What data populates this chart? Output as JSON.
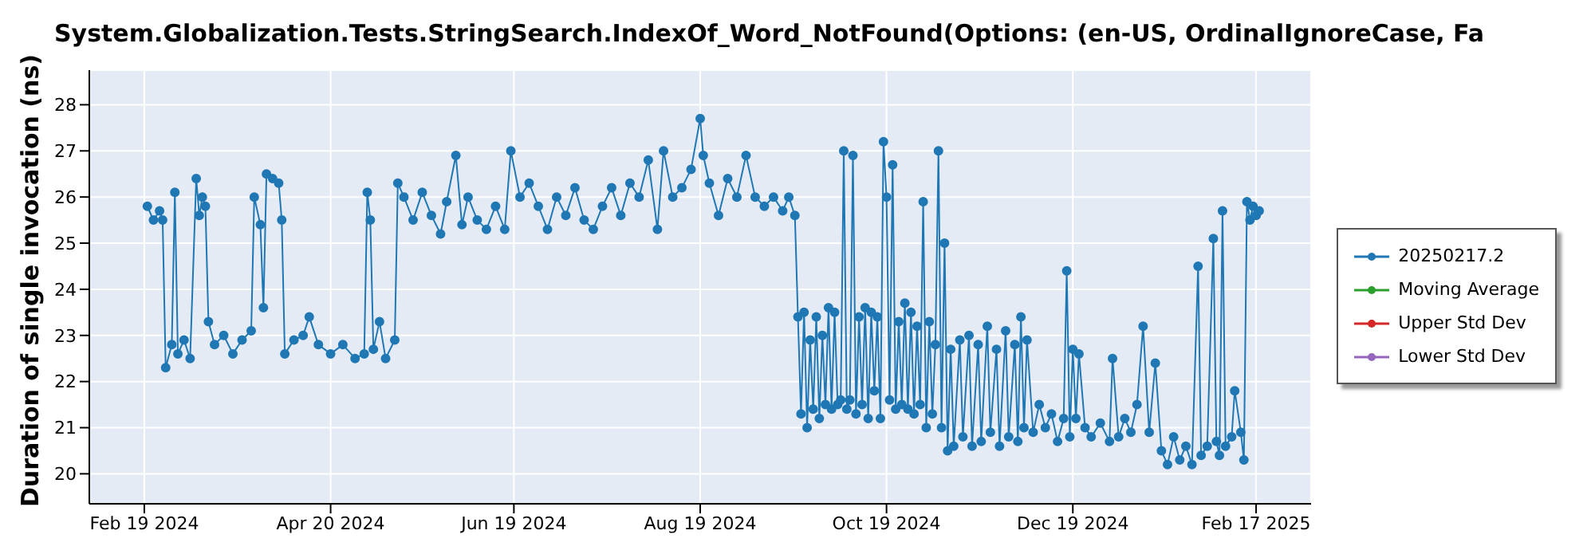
{
  "chart_data": {
    "type": "line",
    "title": "System.Globalization.Tests.StringSearch.IndexOf_Word_NotFound(Options: (en-US, OrdinalIgnoreCase, Fa",
    "ylabel": "Duration of single invocation (ns)",
    "x": [
      "2024-02-20",
      "2024-02-22",
      "2024-02-24",
      "2024-02-25",
      "2024-02-26",
      "2024-02-28",
      "2024-02-29",
      "2024-03-01",
      "2024-03-03",
      "2024-03-05",
      "2024-03-07",
      "2024-03-08",
      "2024-03-09",
      "2024-03-10",
      "2024-03-11",
      "2024-03-13",
      "2024-03-16",
      "2024-03-19",
      "2024-03-22",
      "2024-03-25",
      "2024-03-26",
      "2024-03-28",
      "2024-03-29",
      "2024-03-30",
      "2024-04-01",
      "2024-04-03",
      "2024-04-04",
      "2024-04-05",
      "2024-04-08",
      "2024-04-11",
      "2024-04-13",
      "2024-04-16",
      "2024-04-20",
      "2024-04-24",
      "2024-04-28",
      "2024-05-01",
      "2024-05-02",
      "2024-05-03",
      "2024-05-04",
      "2024-05-06",
      "2024-05-08",
      "2024-05-11",
      "2024-05-12",
      "2024-05-14",
      "2024-05-17",
      "2024-05-20",
      "2024-05-23",
      "2024-05-26",
      "2024-05-28",
      "2024-05-31",
      "2024-06-02",
      "2024-06-04",
      "2024-06-07",
      "2024-06-10",
      "2024-06-13",
      "2024-06-16",
      "2024-06-18",
      "2024-06-21",
      "2024-06-24",
      "2024-06-27",
      "2024-06-30",
      "2024-07-03",
      "2024-07-06",
      "2024-07-09",
      "2024-07-12",
      "2024-07-15",
      "2024-07-18",
      "2024-07-21",
      "2024-07-24",
      "2024-07-27",
      "2024-07-30",
      "2024-08-02",
      "2024-08-05",
      "2024-08-07",
      "2024-08-10",
      "2024-08-13",
      "2024-08-16",
      "2024-08-19",
      "2024-08-20",
      "2024-08-22",
      "2024-08-25",
      "2024-08-28",
      "2024-08-31",
      "2024-09-03",
      "2024-09-06",
      "2024-09-09",
      "2024-09-12",
      "2024-09-15",
      "2024-09-17",
      "2024-09-19",
      "2024-09-20",
      "2024-09-21",
      "2024-09-22",
      "2024-09-23",
      "2024-09-24",
      "2024-09-25",
      "2024-09-26",
      "2024-09-27",
      "2024-09-28",
      "2024-09-29",
      "2024-09-30",
      "2024-10-01",
      "2024-10-02",
      "2024-10-03",
      "2024-10-04",
      "2024-10-05",
      "2024-10-06",
      "2024-10-07",
      "2024-10-08",
      "2024-10-09",
      "2024-10-10",
      "2024-10-11",
      "2024-10-12",
      "2024-10-13",
      "2024-10-14",
      "2024-10-15",
      "2024-10-16",
      "2024-10-17",
      "2024-10-18",
      "2024-10-19",
      "2024-10-20",
      "2024-10-21",
      "2024-10-22",
      "2024-10-23",
      "2024-10-24",
      "2024-10-25",
      "2024-10-26",
      "2024-10-27",
      "2024-10-28",
      "2024-10-29",
      "2024-10-30",
      "2024-10-31",
      "2024-11-01",
      "2024-11-02",
      "2024-11-03",
      "2024-11-04",
      "2024-11-05",
      "2024-11-06",
      "2024-11-07",
      "2024-11-08",
      "2024-11-09",
      "2024-11-10",
      "2024-11-12",
      "2024-11-13",
      "2024-11-15",
      "2024-11-16",
      "2024-11-18",
      "2024-11-19",
      "2024-11-21",
      "2024-11-22",
      "2024-11-24",
      "2024-11-25",
      "2024-11-27",
      "2024-11-28",
      "2024-11-30",
      "2024-12-01",
      "2024-12-02",
      "2024-12-03",
      "2024-12-04",
      "2024-12-06",
      "2024-12-08",
      "2024-12-10",
      "2024-12-12",
      "2024-12-14",
      "2024-12-16",
      "2024-12-17",
      "2024-12-18",
      "2024-12-19",
      "2024-12-20",
      "2024-12-21",
      "2024-12-23",
      "2024-12-25",
      "2024-12-28",
      "2024-12-31",
      "2025-01-01",
      "2025-01-03",
      "2025-01-05",
      "2025-01-07",
      "2025-01-09",
      "2025-01-11",
      "2025-01-13",
      "2025-01-15",
      "2025-01-17",
      "2025-01-19",
      "2025-01-21",
      "2025-01-23",
      "2025-01-25",
      "2025-01-27",
      "2025-01-29",
      "2025-01-30",
      "2025-02-01",
      "2025-02-03",
      "2025-02-04",
      "2025-02-05",
      "2025-02-06",
      "2025-02-07",
      "2025-02-09",
      "2025-02-10",
      "2025-02-12",
      "2025-02-13",
      "2025-02-14",
      "2025-02-15",
      "2025-02-16",
      "2025-02-17",
      "2025-02-18"
    ],
    "series": [
      {
        "name": "20250217.2",
        "color": "#1f77b4",
        "values": [
          25.8,
          25.5,
          25.7,
          25.5,
          22.3,
          22.8,
          26.1,
          22.6,
          22.9,
          22.5,
          26.4,
          25.6,
          26.0,
          25.8,
          23.3,
          22.8,
          23.0,
          22.6,
          22.9,
          23.1,
          26.0,
          25.4,
          23.6,
          26.5,
          26.4,
          26.3,
          25.5,
          22.6,
          22.9,
          23.0,
          23.4,
          22.8,
          22.6,
          22.8,
          22.5,
          22.6,
          26.1,
          25.5,
          22.7,
          23.3,
          22.5,
          22.9,
          26.3,
          26.0,
          25.5,
          26.1,
          25.6,
          25.2,
          25.9,
          26.9,
          25.4,
          26.0,
          25.5,
          25.3,
          25.8,
          25.3,
          27.0,
          26.0,
          26.3,
          25.8,
          25.3,
          26.0,
          25.6,
          26.2,
          25.5,
          25.3,
          25.8,
          26.2,
          25.6,
          26.3,
          26.0,
          26.8,
          25.3,
          27.0,
          26.0,
          26.2,
          26.6,
          27.7,
          26.9,
          26.3,
          25.6,
          26.4,
          26.0,
          26.9,
          26.0,
          25.8,
          26.0,
          25.7,
          26.0,
          25.6,
          23.4,
          21.3,
          23.5,
          21.0,
          22.9,
          21.4,
          23.4,
          21.2,
          23.0,
          21.5,
          23.6,
          21.4,
          23.5,
          21.5,
          21.6,
          27.0,
          21.4,
          21.6,
          26.9,
          21.3,
          23.4,
          21.5,
          23.6,
          21.2,
          23.5,
          21.8,
          23.4,
          21.2,
          27.2,
          26.0,
          21.6,
          26.7,
          21.4,
          23.3,
          21.5,
          23.7,
          21.4,
          23.5,
          21.3,
          23.2,
          21.5,
          25.9,
          21.0,
          23.3,
          21.3,
          22.8,
          27.0,
          21.0,
          25.0,
          20.5,
          22.7,
          20.6,
          22.9,
          20.8,
          23.0,
          20.6,
          22.8,
          20.7,
          23.2,
          20.9,
          22.7,
          20.6,
          23.1,
          20.8,
          22.8,
          20.7,
          23.4,
          21.0,
          22.9,
          20.9,
          21.5,
          21.0,
          21.3,
          20.7,
          21.2,
          24.4,
          20.8,
          22.7,
          21.2,
          22.6,
          21.0,
          20.8,
          21.1,
          20.7,
          22.5,
          20.8,
          21.2,
          20.9,
          21.5,
          23.2,
          20.9,
          22.4,
          20.5,
          20.2,
          20.8,
          20.3,
          20.6,
          20.2,
          24.5,
          20.4,
          20.6,
          25.1,
          20.7,
          20.4,
          25.7,
          20.6,
          20.8,
          21.8,
          20.9,
          20.3,
          25.9,
          25.5,
          25.8,
          25.6,
          25.7
        ]
      },
      {
        "name": "Moving Average",
        "color": "#2ca02c",
        "values": [
          null,
          null,
          null,
          null,
          null,
          null,
          null,
          null,
          null,
          null,
          null,
          null,
          null,
          null,
          null,
          null,
          null,
          null,
          null,
          null,
          null,
          null,
          null,
          null,
          null,
          null,
          null,
          null,
          null,
          null,
          null,
          null,
          null,
          null,
          null,
          null,
          null,
          null,
          null,
          null,
          null,
          null,
          null,
          null,
          null,
          null,
          null,
          null,
          null,
          null,
          null,
          null,
          null,
          null,
          null,
          null,
          null,
          null,
          null,
          null,
          null,
          null,
          null,
          null,
          null,
          null,
          null,
          null,
          null,
          null,
          null,
          null,
          null,
          null,
          null,
          null,
          null,
          null,
          null,
          null,
          null,
          null,
          null,
          null,
          null,
          null,
          null,
          null,
          null,
          null,
          null,
          null,
          null,
          null,
          null,
          null,
          null,
          null,
          null,
          null,
          null,
          null,
          null,
          null,
          null,
          null,
          null,
          null,
          null,
          null,
          null,
          null,
          null,
          null,
          null,
          null,
          null,
          null,
          null,
          null,
          null,
          null,
          null,
          null,
          null,
          null,
          null,
          null,
          null,
          null,
          null,
          null,
          null,
          null,
          null,
          null,
          null,
          null,
          null,
          null,
          null,
          null,
          null,
          null,
          null,
          null,
          null,
          null,
          null,
          null,
          null,
          null,
          null,
          null,
          null,
          null,
          null,
          null,
          null,
          null,
          null,
          null,
          null,
          null,
          null,
          null,
          null,
          null,
          null,
          null,
          null,
          null,
          null,
          null,
          null,
          null,
          null,
          null,
          null,
          null,
          null,
          null,
          null,
          null,
          null,
          null,
          null,
          null,
          null,
          null,
          null,
          null,
          null,
          null,
          null,
          null,
          null,
          null,
          null,
          null,
          null,
          null,
          null,
          null,
          null
        ]
      },
      {
        "name": "Upper Std Dev",
        "color": "#d62728",
        "values": [
          null,
          null,
          null,
          null,
          null,
          null,
          null,
          null,
          null,
          null,
          null,
          null,
          null,
          null,
          null,
          null,
          null,
          null,
          null,
          null,
          null,
          null,
          null,
          null,
          null,
          null,
          null,
          null,
          null,
          null,
          null,
          null,
          null,
          null,
          null,
          null,
          null,
          null,
          null,
          null,
          null,
          null,
          null,
          null,
          null,
          null,
          null,
          null,
          null,
          null,
          null,
          null,
          null,
          null,
          null,
          null,
          null,
          null,
          null,
          null,
          null,
          null,
          null,
          null,
          null,
          null,
          null,
          null,
          null,
          null,
          null,
          null,
          null,
          null,
          null,
          null,
          null,
          null,
          null,
          null,
          null,
          null,
          null,
          null,
          null,
          null,
          null,
          null,
          null,
          null,
          null,
          null,
          null,
          null,
          null,
          null,
          null,
          null,
          null,
          null,
          null,
          null,
          null,
          null,
          null,
          null,
          null,
          null,
          null,
          null,
          null,
          null,
          null,
          null,
          null,
          null,
          null,
          null,
          null,
          null,
          null,
          null,
          null,
          null,
          null,
          null,
          null,
          null,
          null,
          null,
          null,
          null,
          null,
          null,
          null,
          null,
          null,
          null,
          null,
          null,
          null,
          null,
          null,
          null,
          null,
          null,
          null,
          null,
          null,
          null,
          null,
          null,
          null,
          null,
          null,
          null,
          null,
          null,
          null,
          null,
          null,
          null,
          null,
          null,
          null,
          null,
          null,
          null,
          null,
          null,
          null,
          null,
          null,
          null,
          null,
          null,
          null,
          null,
          null,
          null,
          null,
          null,
          null,
          null,
          null,
          null,
          null,
          null,
          null,
          null,
          null,
          null,
          null,
          null,
          null,
          null,
          null,
          null,
          null,
          null,
          null,
          null,
          null,
          null,
          null
        ]
      },
      {
        "name": "Lower Std Dev",
        "color": "#9467bd",
        "values": [
          null,
          null,
          null,
          null,
          null,
          null,
          null,
          null,
          null,
          null,
          null,
          null,
          null,
          null,
          null,
          null,
          null,
          null,
          null,
          null,
          null,
          null,
          null,
          null,
          null,
          null,
          null,
          null,
          null,
          null,
          null,
          null,
          null,
          null,
          null,
          null,
          null,
          null,
          null,
          null,
          null,
          null,
          null,
          null,
          null,
          null,
          null,
          null,
          null,
          null,
          null,
          null,
          null,
          null,
          null,
          null,
          null,
          null,
          null,
          null,
          null,
          null,
          null,
          null,
          null,
          null,
          null,
          null,
          null,
          null,
          null,
          null,
          null,
          null,
          null,
          null,
          null,
          null,
          null,
          null,
          null,
          null,
          null,
          null,
          null,
          null,
          null,
          null,
          null,
          null,
          null,
          null,
          null,
          null,
          null,
          null,
          null,
          null,
          null,
          null,
          null,
          null,
          null,
          null,
          null,
          null,
          null,
          null,
          null,
          null,
          null,
          null,
          null,
          null,
          null,
          null,
          null,
          null,
          null,
          null,
          null,
          null,
          null,
          null,
          null,
          null,
          null,
          null,
          null,
          null,
          null,
          null,
          null,
          null,
          null,
          null,
          null,
          null,
          null,
          null,
          null,
          null,
          null,
          null,
          null,
          null,
          null,
          null,
          null,
          null,
          null,
          null,
          null,
          null,
          null,
          null,
          null,
          null,
          null,
          null,
          null,
          null,
          null,
          null,
          null,
          null,
          null,
          null,
          null,
          null,
          null,
          null,
          null,
          null,
          null,
          null,
          null,
          null,
          null,
          null,
          null,
          null,
          null,
          null,
          null,
          null,
          null,
          null,
          null,
          null,
          null,
          null,
          null,
          null,
          null,
          null,
          null,
          null,
          null,
          null,
          null,
          null,
          null,
          null,
          null
        ]
      }
    ],
    "xlim": [
      "2024-02-01",
      "2025-03-07"
    ],
    "xticks": [
      {
        "value": "2024-02-19",
        "label": "Feb 19 2024"
      },
      {
        "value": "2024-04-20",
        "label": "Apr 20 2024"
      },
      {
        "value": "2024-06-19",
        "label": "Jun 19 2024"
      },
      {
        "value": "2024-08-19",
        "label": "Aug 19 2024"
      },
      {
        "value": "2024-10-19",
        "label": "Oct 19 2024"
      },
      {
        "value": "2024-12-19",
        "label": "Dec 19 2024"
      },
      {
        "value": "2025-02-17",
        "label": "Feb 17 2025"
      }
    ],
    "ylim": [
      19.35,
      28.75
    ],
    "yticks": [
      20,
      21,
      22,
      23,
      24,
      25,
      26,
      27,
      28
    ],
    "grid": true,
    "legend": "right",
    "marker": "circle",
    "line_style": "solid"
  }
}
